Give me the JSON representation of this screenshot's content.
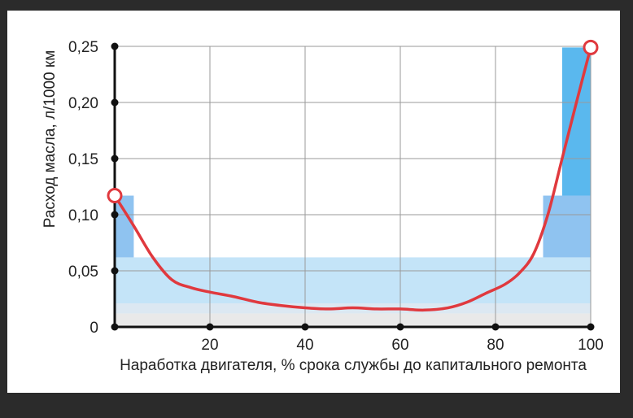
{
  "chart_data": {
    "type": "line",
    "title": "",
    "xlabel": "Наработка двигателя, % срока службы до капитального ремонта",
    "ylabel": "Расход масла, л/1000 км",
    "xlim": [
      0,
      100
    ],
    "ylim": [
      0,
      0.25
    ],
    "x_ticks": [
      {
        "value": 20,
        "label": "20"
      },
      {
        "value": 40,
        "label": "40"
      },
      {
        "value": 60,
        "label": "60"
      },
      {
        "value": 80,
        "label": "80"
      },
      {
        "value": 100,
        "label": "100"
      }
    ],
    "y_ticks": [
      {
        "value": 0,
        "label": "0"
      },
      {
        "value": 0.05,
        "label": "0,05"
      },
      {
        "value": 0.1,
        "label": "0,10"
      },
      {
        "value": 0.15,
        "label": "0,15"
      },
      {
        "value": 0.2,
        "label": "0,20"
      },
      {
        "value": 0.25,
        "label": "0,25"
      }
    ],
    "grid": true,
    "line_color": "#e0393e",
    "series": [
      {
        "x": [
          0,
          4,
          8,
          12,
          16,
          20,
          25,
          30,
          35,
          40,
          45,
          50,
          55,
          60,
          65,
          70,
          74,
          78,
          82,
          85,
          88,
          91,
          94,
          97,
          100
        ],
        "y": [
          0.117,
          0.09,
          0.062,
          0.042,
          0.035,
          0.031,
          0.027,
          0.022,
          0.019,
          0.017,
          0.016,
          0.017,
          0.016,
          0.016,
          0.015,
          0.017,
          0.022,
          0.03,
          0.038,
          0.048,
          0.065,
          0.1,
          0.15,
          0.2,
          0.249
        ]
      }
    ],
    "markers": [
      {
        "x": 0,
        "y": 0.117
      },
      {
        "x": 100,
        "y": 0.249
      }
    ],
    "bands": [
      {
        "y0": 0,
        "y1": 0.012,
        "color": "#e9e9e9"
      },
      {
        "y0": 0.012,
        "y1": 0.021,
        "color": "#dce8f2"
      },
      {
        "y0": 0.021,
        "y1": 0.062,
        "color": "#c4e4f8"
      },
      {
        "y0": 0.062,
        "y1": 0.117,
        "color": "#8fc3f0",
        "left_limit": 4,
        "right_from": 90
      },
      {
        "y0": 0.117,
        "y1": 0.249,
        "color": "#5ab8ee",
        "right_from": 94
      }
    ]
  }
}
